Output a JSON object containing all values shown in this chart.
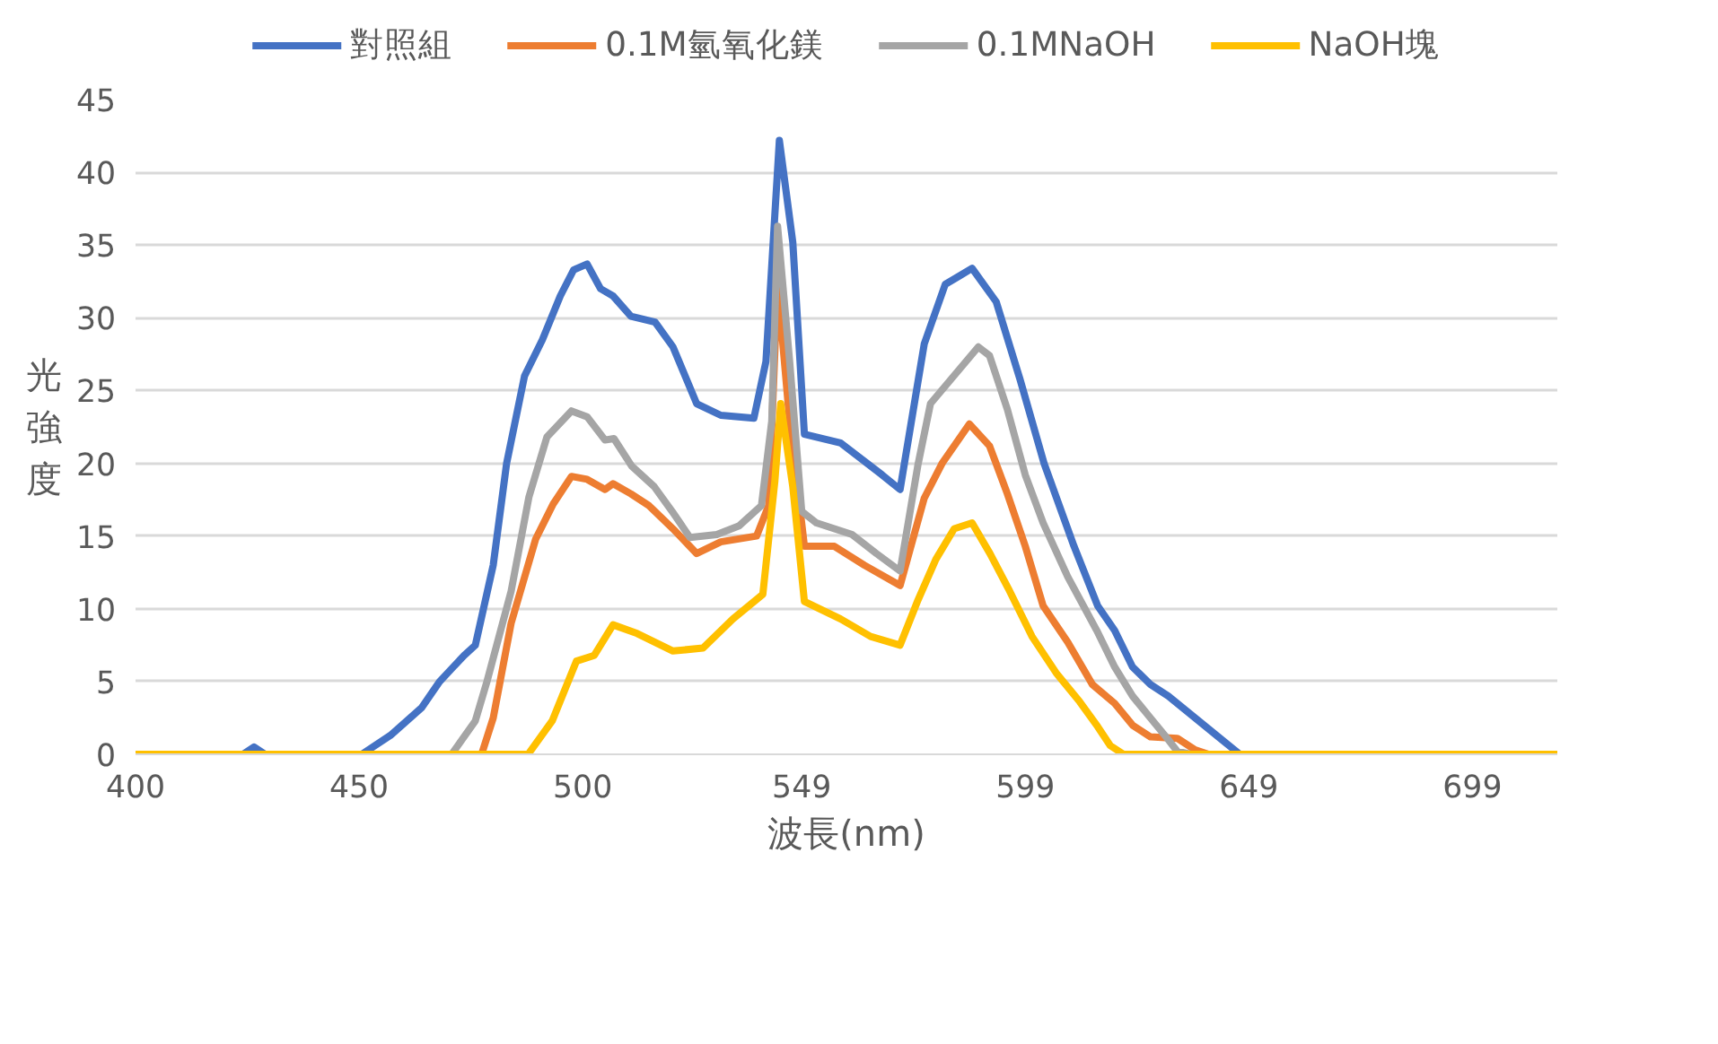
{
  "chart_data": {
    "type": "line",
    "xlabel": "波長(nm)",
    "ylabel": "光強度",
    "xlim": [
      400,
      718
    ],
    "xticks": [
      400,
      450,
      500,
      549,
      599,
      649,
      699
    ],
    "ylim": [
      0,
      45
    ],
    "yticks": [
      0,
      5,
      10,
      15,
      20,
      25,
      30,
      35,
      40,
      45
    ],
    "grid": "y",
    "legend": "top",
    "marker": "none",
    "line_style": "solid",
    "series": [
      {
        "name": "對照組",
        "color": "#4472c4",
        "x": [
          400,
          424,
          426.5,
          429,
          450.6,
          457,
          464,
          468,
          473.5,
          476,
          480,
          483,
          487,
          491,
          495,
          498,
          501,
          504,
          506.8,
          510.8,
          516.2,
          520.2,
          525.5,
          530.9,
          538.3,
          541,
          544,
          547,
          549.6,
          557.7,
          567,
          571,
          576.4,
          581.1,
          584.4,
          587.1,
          592.5,
          597.8,
          603.2,
          609.9,
          615.2,
          619,
          623,
          627,
          631,
          635,
          639,
          643,
          647,
          718
        ],
        "values": [
          0,
          0,
          0.5,
          0,
          0,
          1.3,
          3.2,
          5,
          6.8,
          7.5,
          13,
          20,
          26,
          28.5,
          31.5,
          33.3,
          33.7,
          32,
          31.5,
          30.1,
          29.7,
          28,
          24.1,
          23.3,
          23.1,
          27,
          42.2,
          35.2,
          22,
          21.4,
          19.2,
          18.2,
          28.2,
          32.3,
          32.9,
          33.4,
          31.1,
          25.8,
          20,
          14.3,
          10.2,
          8.5,
          6,
          4.8,
          4,
          3,
          2,
          1,
          0,
          0
        ]
      },
      {
        "name": "0.1M氫氧化鎂",
        "color": "#ed7d31",
        "x": [
          400,
          477.4,
          480,
          484,
          489.5,
          493.4,
          497.5,
          501,
          505,
          506.8,
          510.8,
          514.8,
          520.2,
          525.5,
          530.9,
          538.9,
          541.6,
          543.6,
          546.3,
          549.6,
          556.3,
          563,
          571,
          576.4,
          580.4,
          586.5,
          591,
          595,
          599,
          603,
          608.5,
          614,
          619,
          623,
          627,
          633,
          637,
          640,
          718
        ],
        "values": [
          0,
          0,
          2.5,
          9,
          14.8,
          17.2,
          19.1,
          18.9,
          18.2,
          18.6,
          17.9,
          17.1,
          15.5,
          13.8,
          14.6,
          15,
          17.1,
          32.3,
          22.9,
          14.3,
          14.3,
          13,
          11.6,
          17.6,
          20,
          22.7,
          21.2,
          17.9,
          14.3,
          10.2,
          7.7,
          4.8,
          3.5,
          2,
          1.2,
          1.1,
          0.3,
          0,
          0
        ]
      },
      {
        "name": "0.1MNaOH",
        "color": "#a5a5a5",
        "x": [
          400,
          470.7,
          476,
          478.6,
          484,
          488,
          492,
          497.5,
          501,
          505,
          507,
          511,
          516,
          520,
          524,
          530,
          535,
          540,
          542.3,
          543.6,
          546.3,
          549,
          552.3,
          560.3,
          565.7,
          571,
          575,
          577.8,
          583,
          588.5,
          591,
          595,
          599,
          603,
          608.5,
          615,
          619,
          623,
          627,
          631,
          633,
          636,
          718
        ],
        "values": [
          0,
          0,
          2.3,
          5,
          11.2,
          17.7,
          21.8,
          23.6,
          23.2,
          21.6,
          21.7,
          19.8,
          18.4,
          16.7,
          14.9,
          15.1,
          15.7,
          17.1,
          22.9,
          36.3,
          27,
          16.7,
          15.9,
          15.1,
          13.8,
          12.6,
          19.9,
          24.1,
          26,
          28,
          27.4,
          23.7,
          19.2,
          15.9,
          12.2,
          8.5,
          6,
          4,
          2.5,
          1,
          0.2,
          0,
          0
        ]
      },
      {
        "name": "NaOH塊",
        "color": "#ffc000",
        "x": [
          400,
          487.8,
          493.2,
          498.6,
          502.6,
          506.8,
          512.2,
          520.2,
          526.9,
          533.6,
          540.3,
          543,
          544.3,
          547,
          549.6,
          557.7,
          564.4,
          571,
          575,
          579,
          583.1,
          587.1,
          591.1,
          595.2,
          600.5,
          605.9,
          611.2,
          615.2,
          618,
          621,
          718
        ],
        "values": [
          0,
          0,
          2.3,
          6.4,
          6.8,
          8.9,
          8.3,
          7.1,
          7.3,
          9.3,
          11,
          18.8,
          24.1,
          18.4,
          10.5,
          9.3,
          8.1,
          7.5,
          10.6,
          13.4,
          15.5,
          15.9,
          13.8,
          11.4,
          8.1,
          5.6,
          3.6,
          1.9,
          0.6,
          0,
          0
        ]
      }
    ]
  }
}
